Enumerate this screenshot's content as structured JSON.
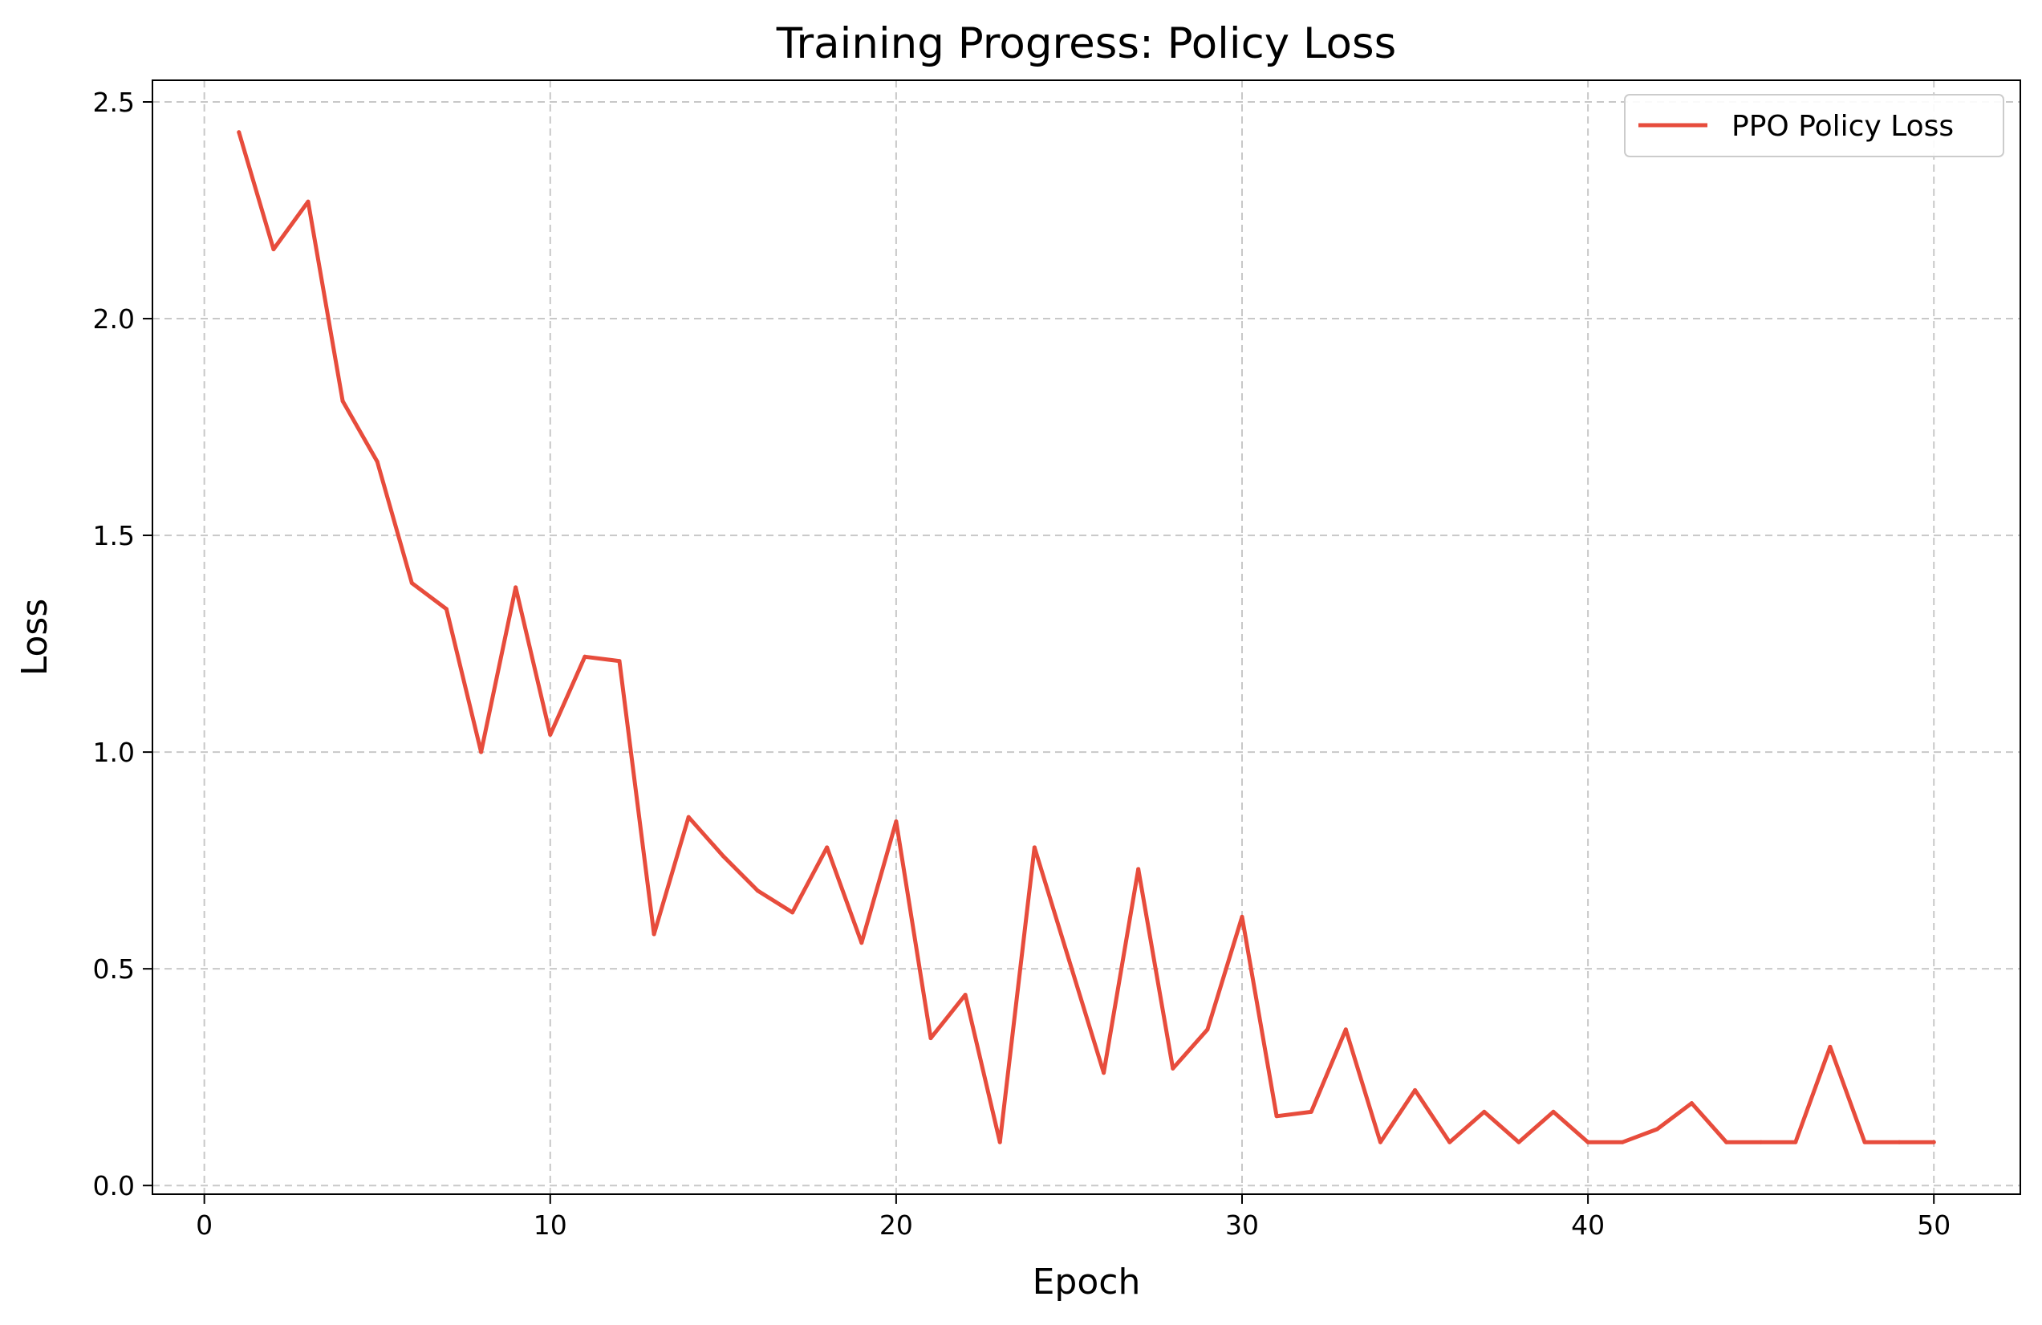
{
  "chart_data": {
    "type": "line",
    "title": "Training Progress: Policy Loss",
    "xlabel": "Epoch",
    "ylabel": "Loss",
    "xlim": [
      -1.5,
      52.5
    ],
    "ylim": [
      -0.02,
      2.55
    ],
    "xticks": [
      0,
      10,
      20,
      30,
      40,
      50
    ],
    "xtick_labels": [
      "0",
      "10",
      "20",
      "30",
      "40",
      "50"
    ],
    "yticks": [
      0.0,
      0.5,
      1.0,
      1.5,
      2.0,
      2.5
    ],
    "ytick_labels": [
      "0.0",
      "0.5",
      "1.0",
      "1.5",
      "2.0",
      "2.5"
    ],
    "grid": true,
    "legend_position": "top-right",
    "series": [
      {
        "name": "PPO Policy Loss",
        "color": "#e74c3c",
        "x": [
          1,
          2,
          3,
          4,
          5,
          6,
          7,
          8,
          9,
          10,
          11,
          12,
          13,
          14,
          15,
          16,
          17,
          18,
          19,
          20,
          21,
          22,
          23,
          24,
          25,
          26,
          27,
          28,
          29,
          30,
          31,
          32,
          33,
          34,
          35,
          36,
          37,
          38,
          39,
          40,
          41,
          42,
          43,
          44,
          45,
          46,
          47,
          48,
          49,
          50
        ],
        "values": [
          2.43,
          2.16,
          2.27,
          1.81,
          1.67,
          1.39,
          1.33,
          1.0,
          1.38,
          1.04,
          1.22,
          1.21,
          0.58,
          0.85,
          0.76,
          0.68,
          0.63,
          0.78,
          0.56,
          0.84,
          0.34,
          0.44,
          0.1,
          0.78,
          0.52,
          0.26,
          0.73,
          0.27,
          0.36,
          0.62,
          0.16,
          0.17,
          0.36,
          0.1,
          0.22,
          0.1,
          0.17,
          0.1,
          0.17,
          0.1,
          0.1,
          0.13,
          0.19,
          0.1,
          0.1,
          0.1,
          0.32,
          0.1,
          0.1,
          0.1
        ]
      }
    ]
  }
}
